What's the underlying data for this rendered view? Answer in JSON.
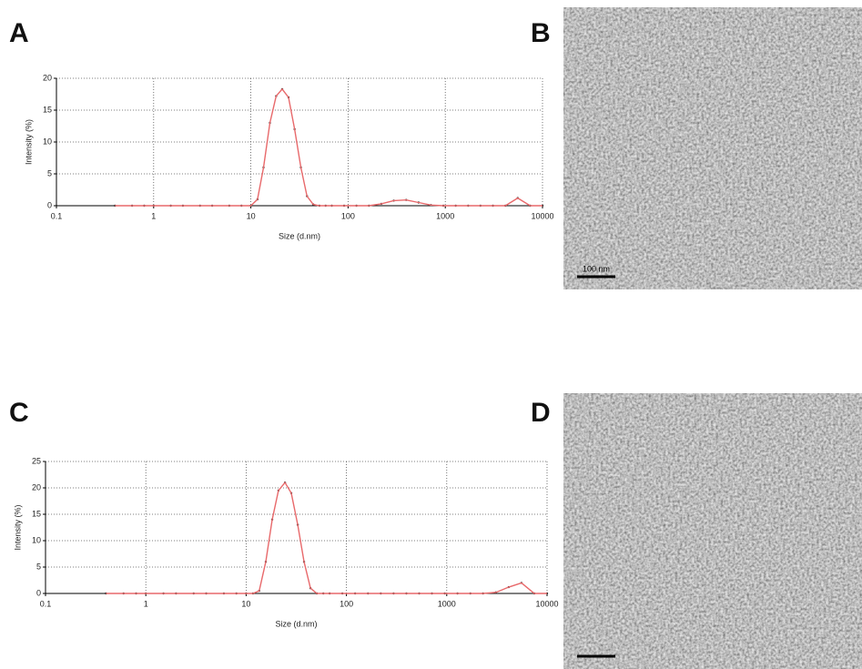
{
  "chart_data": [
    {
      "type": "line",
      "label": "A",
      "xlabel": "Size (d.nm)",
      "ylabel": "Intensity (%)",
      "log_x": true,
      "grid": true,
      "xlim": [
        0.1,
        10000
      ],
      "xticks": [
        0.1,
        1,
        10,
        100,
        1000,
        10000
      ],
      "ylim": [
        0,
        20
      ],
      "yticks": [
        0,
        5,
        10,
        15,
        20
      ],
      "x": [
        0.4,
        0.6,
        0.8,
        1,
        1.5,
        2,
        3,
        4,
        6,
        8,
        10,
        11.7,
        13.5,
        15.7,
        18.2,
        21,
        24.4,
        28.2,
        32.7,
        37.8,
        43.8,
        50.7,
        58.8,
        68,
        91,
        122,
        164,
        220,
        295,
        396,
        531,
        712,
        955,
        1280,
        1720,
        2300,
        3090,
        4150,
        5560,
        7460,
        10000
      ],
      "series": [
        {
          "color": "#e8696b",
          "values": [
            0,
            0,
            0,
            0,
            0,
            0,
            0,
            0,
            0,
            0,
            0,
            1.0,
            6,
            13,
            17.2,
            18.3,
            17,
            12,
            6,
            1.5,
            0.2,
            0,
            0,
            0,
            0,
            0,
            0,
            0.3,
            0.8,
            0.9,
            0.5,
            0.1,
            0,
            0,
            0,
            0,
            0,
            0,
            1.2,
            0,
            0
          ]
        }
      ]
    },
    {
      "type": "image",
      "label": "B",
      "scale_bar": "100 nm"
    },
    {
      "type": "line",
      "label": "C",
      "xlabel": "Size (d.nm)",
      "ylabel": "Intensity (%)",
      "log_x": true,
      "grid": true,
      "xlim": [
        0.1,
        10000
      ],
      "xticks": [
        0.1,
        1,
        10,
        100,
        1000,
        10000
      ],
      "ylim": [
        0,
        25
      ],
      "yticks": [
        0,
        5,
        10,
        15,
        20,
        25
      ],
      "x": [
        0.4,
        0.6,
        0.8,
        1,
        1.5,
        2,
        3,
        4,
        6,
        8,
        10,
        11.7,
        13.5,
        15.7,
        18.2,
        21,
        24.4,
        28.2,
        32.7,
        37.8,
        43.8,
        50.7,
        58.8,
        68,
        91,
        122,
        164,
        220,
        295,
        396,
        531,
        712,
        955,
        1280,
        1720,
        2300,
        3090,
        4150,
        5560,
        7460,
        10000
      ],
      "series": [
        {
          "color": "#e8696b",
          "values": [
            0,
            0,
            0,
            0,
            0,
            0,
            0,
            0,
            0,
            0,
            0,
            0,
            0.5,
            6,
            14,
            19.5,
            21,
            19,
            13,
            6,
            1,
            0,
            0,
            0,
            0,
            0,
            0,
            0,
            0,
            0,
            0,
            0,
            0,
            0,
            0,
            0,
            0.2,
            1.2,
            2.0,
            0,
            0
          ]
        }
      ]
    },
    {
      "type": "image",
      "label": "D"
    }
  ]
}
